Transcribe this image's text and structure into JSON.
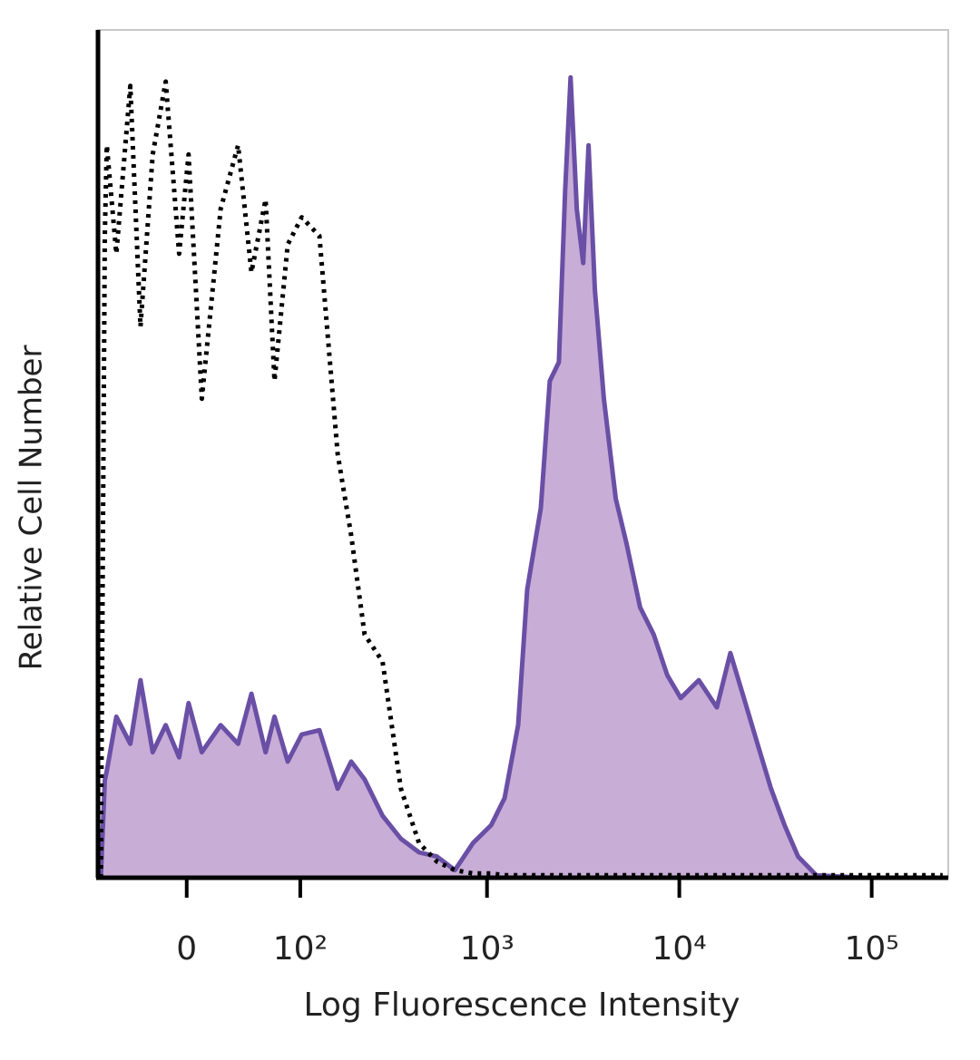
{
  "chart_data": {
    "type": "histogram-overlay",
    "x_label": "Log Fluorescence Intensity",
    "y_label": "Relative Cell Number",
    "x_scale": "biexponential",
    "xlim": [
      -70,
      250000
    ],
    "ylim": [
      0,
      100
    ],
    "xticks": [
      0,
      {
        "value": 100,
        "label": "10²"
      },
      {
        "value": 1000,
        "label": "10³"
      },
      {
        "value": 10000,
        "label": "10⁴"
      },
      {
        "value": 100000,
        "label": "10⁵"
      }
    ],
    "x": [
      -67,
      -63,
      -61,
      -52,
      -40,
      -32,
      -23,
      -14,
      -5,
      1.2,
      10,
      23,
      36,
      47,
      60,
      69,
      84,
      102,
      129,
      163,
      193,
      228,
      284,
      355,
      442,
      548,
      680,
      846,
      1051,
      1235,
      1452,
      1619,
      1905,
      2122,
      2365,
      2549,
      2720,
      2934,
      3165,
      3374,
      3641,
      4056,
      4672,
      5319,
      6256,
      7356,
      8652,
      10175,
      12623,
      15675,
      18425,
      21670,
      25490,
      29975,
      35255,
      41443,
      51500,
      88400,
      234000
    ],
    "series": [
      {
        "color": "#6a4fa6",
        "fill": "#c8add6",
        "style": "solid",
        "values": [
          0,
          11.5,
          12.6,
          19,
          15.8,
          23.3,
          14.8,
          18,
          14.2,
          20.6,
          14.8,
          18,
          15.8,
          21.7,
          14.8,
          19,
          13.7,
          16.9,
          17.4,
          10.5,
          13.7,
          11.6,
          7.3,
          4.6,
          3,
          2.5,
          0.9,
          4.1,
          6.2,
          9.4,
          18,
          34,
          43.6,
          58.6,
          60.8,
          81,
          94.4,
          78.8,
          72.5,
          86.4,
          69.3,
          56.5,
          44.7,
          39.4,
          31.9,
          28.7,
          23.9,
          21.2,
          23.3,
          20.1,
          26.5,
          21.2,
          15.8,
          10.5,
          6.2,
          2.5,
          0.3,
          0,
          0
        ]
      },
      {
        "color": "#000000",
        "style": "dotted",
        "values": [
          0,
          75.7,
          86.4,
          73.6,
          93.4,
          65,
          85.3,
          93.9,
          73.6,
          85.3,
          56.5,
          78.9,
          86.4,
          71.4,
          80,
          58.6,
          74.7,
          77.9,
          75.7,
          50,
          40.4,
          28.7,
          25.5,
          10.5,
          4.1,
          1.9,
          0.9,
          0.5,
          0.5,
          0.3,
          0.3,
          0.3,
          0.3,
          0.3,
          0.3,
          0.3,
          0.3,
          0.3,
          0.3,
          0.3,
          0.3,
          0.3,
          0.3,
          0.3,
          0.3,
          0.3,
          0.3,
          0.3,
          0.3,
          0.3,
          0.3,
          0.3,
          0.3,
          0.3,
          0.3,
          0.3,
          0.3,
          0.3,
          0.3
        ]
      }
    ]
  }
}
